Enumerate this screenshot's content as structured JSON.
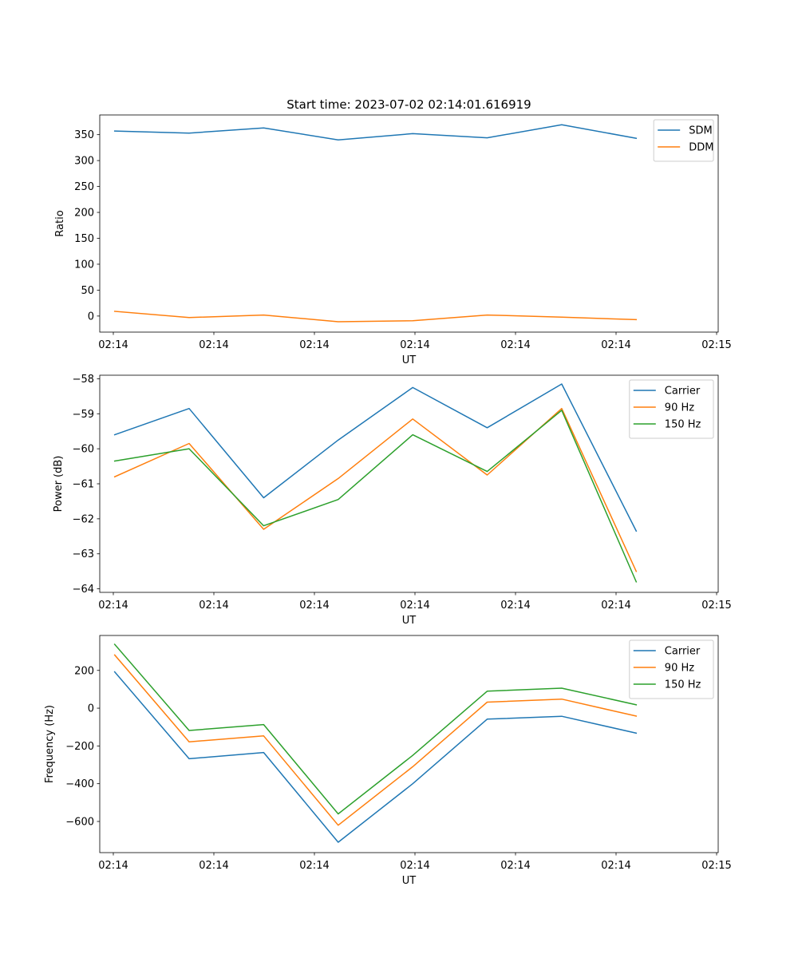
{
  "figure": {
    "title": "Start time: 2023-07-02 02:14:01.616919"
  },
  "chart_data": [
    {
      "type": "line",
      "title": "Start time: 2023-07-02 02:14:01.616919",
      "xlabel": "UT",
      "ylabel": "Ratio",
      "x_tick_labels": [
        "02:14",
        "02:14",
        "02:14",
        "02:14",
        "02:14",
        "02:14",
        "02:15"
      ],
      "x": [
        1,
        2,
        3,
        4,
        5,
        6,
        7,
        8
      ],
      "xlim": [
        0.8,
        9.1
      ],
      "ylim": [
        -31,
        388
      ],
      "y_ticks": [
        0,
        50,
        100,
        150,
        200,
        250,
        300,
        350
      ],
      "y_tick_labels": [
        "0",
        "50",
        "100",
        "150",
        "200",
        "250",
        "300",
        "350"
      ],
      "legend": "top-right",
      "series": [
        {
          "name": "SDM",
          "color": "#1f77b4",
          "values": [
            357,
            353,
            363,
            340,
            352,
            344,
            369,
            343
          ]
        },
        {
          "name": "DDM",
          "color": "#ff7f0e",
          "values": [
            9,
            -3,
            2,
            -11,
            -9,
            2,
            -2,
            -7
          ]
        }
      ]
    },
    {
      "type": "line",
      "xlabel": "UT",
      "ylabel": "Power (dB)",
      "x_tick_labels": [
        "02:14",
        "02:14",
        "02:14",
        "02:14",
        "02:14",
        "02:14",
        "02:15"
      ],
      "x": [
        1,
        2,
        3,
        4,
        5,
        6,
        7,
        8
      ],
      "xlim": [
        0.8,
        9.1
      ],
      "ylim": [
        -64.1,
        -57.9
      ],
      "y_ticks": [
        -64,
        -63,
        -62,
        -61,
        -60,
        -59,
        -58
      ],
      "y_tick_labels": [
        "−64",
        "−63",
        "−62",
        "−61",
        "−60",
        "−59",
        "−58"
      ],
      "legend": "top-right",
      "series": [
        {
          "name": "Carrier",
          "color": "#1f77b4",
          "values": [
            -59.6,
            -58.85,
            -61.4,
            -59.75,
            -58.25,
            -59.4,
            -58.15,
            -62.35
          ]
        },
        {
          "name": "90 Hz",
          "color": "#ff7f0e",
          "values": [
            -60.8,
            -59.85,
            -62.3,
            -60.85,
            -59.15,
            -60.75,
            -58.85,
            -63.5
          ]
        },
        {
          "name": "150 Hz",
          "color": "#2ca02c",
          "values": [
            -60.35,
            -60.0,
            -62.2,
            -61.45,
            -59.6,
            -60.65,
            -58.9,
            -63.8
          ]
        }
      ]
    },
    {
      "type": "line",
      "xlabel": "UT",
      "ylabel": "Frequency (Hz)",
      "x_tick_labels": [
        "02:14",
        "02:14",
        "02:14",
        "02:14",
        "02:14",
        "02:14",
        "02:15"
      ],
      "x": [
        1,
        2,
        3,
        4,
        5,
        6,
        7,
        8
      ],
      "xlim": [
        0.8,
        9.1
      ],
      "ylim": [
        -765,
        385
      ],
      "y_ticks": [
        -600,
        -400,
        -200,
        0,
        200
      ],
      "y_tick_labels": [
        "−600",
        "−400",
        "−200",
        "0",
        "200"
      ],
      "legend": "top-right",
      "series": [
        {
          "name": "Carrier",
          "color": "#1f77b4",
          "values": [
            192,
            -268,
            -235,
            -710,
            -400,
            -58,
            -43,
            -132
          ]
        },
        {
          "name": "90 Hz",
          "color": "#ff7f0e",
          "values": [
            282,
            -178,
            -147,
            -620,
            -310,
            32,
            48,
            -42
          ]
        },
        {
          "name": "150 Hz",
          "color": "#2ca02c",
          "values": [
            338,
            -118,
            -87,
            -560,
            -250,
            90,
            106,
            18
          ]
        }
      ]
    }
  ]
}
